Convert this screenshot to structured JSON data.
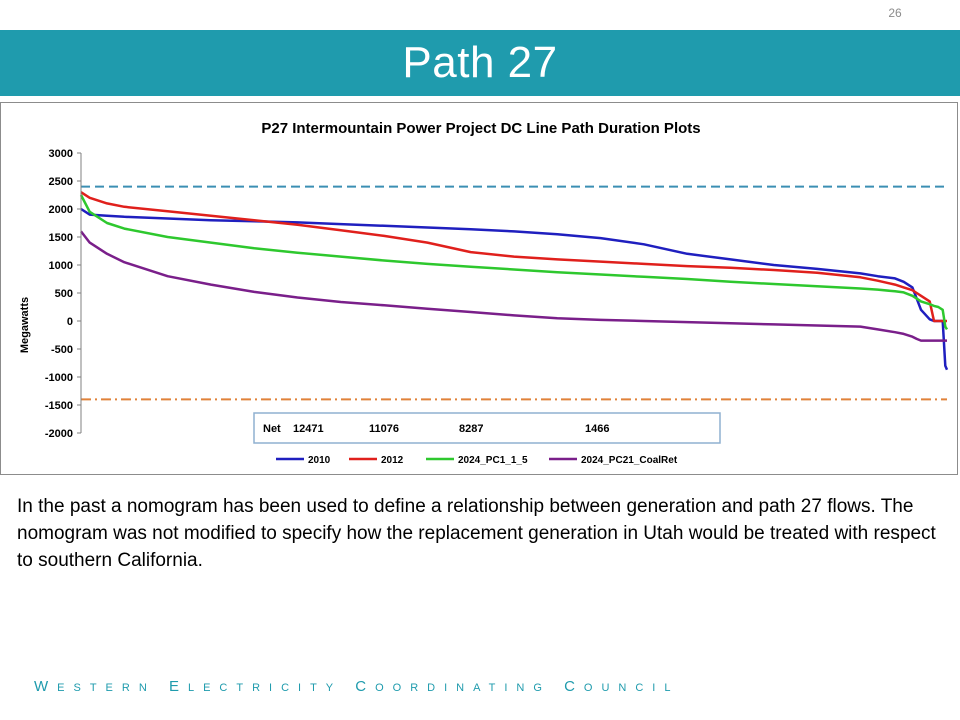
{
  "slide": {
    "page_number": "26",
    "title": "Path 27",
    "body_text": "In the past a nomogram has been used to define a relationship between generation and path 27 flows.  The nomogram was not modified to specify how the replacement generation in Utah would be treated with respect to southern California.",
    "footer": "Western Electricity Coordinating Council"
  },
  "colors": {
    "title_band": "#1f9bad",
    "footer_text": "#1f9bad",
    "series_2010": "#1f1fbf",
    "series_2012": "#e0201c",
    "series_2024_pc1": "#2ec82e",
    "series_2024_pc21": "#7a1f8a",
    "upper_limit": "#3b8fb3",
    "lower_limit": "#e0823a"
  },
  "chart_data": {
    "type": "line",
    "title": "P27 Intermountain Power Project DC Line Path Duration Plots",
    "ylabel": "Megawatts",
    "xlabel": "",
    "ylim": [
      -2000,
      3000
    ],
    "yticks": [
      "3000",
      "2500",
      "2000",
      "1500",
      "1000",
      "500",
      "0",
      "-500",
      "-1000",
      "-1500",
      "-2000"
    ],
    "x": [
      0,
      1,
      3,
      5,
      10,
      15,
      20,
      25,
      30,
      35,
      40,
      45,
      50,
      55,
      60,
      65,
      70,
      75,
      80,
      85,
      90,
      92,
      94,
      95,
      96,
      96.5,
      97,
      98,
      98.5,
      99,
      99.5,
      99.8,
      100
    ],
    "series": [
      {
        "name": "2010",
        "color": "#1f1fbf",
        "values": [
          2000,
          1900,
          1880,
          1860,
          1830,
          1800,
          1780,
          1760,
          1730,
          1700,
          1670,
          1640,
          1600,
          1550,
          1480,
          1370,
          1200,
          1100,
          1000,
          930,
          850,
          800,
          760,
          700,
          600,
          400,
          200,
          30,
          0,
          0,
          0,
          -800,
          -870
        ]
      },
      {
        "name": "2012",
        "color": "#e0201c",
        "values": [
          2300,
          2200,
          2100,
          2040,
          1960,
          1880,
          1800,
          1720,
          1620,
          1520,
          1400,
          1230,
          1150,
          1100,
          1060,
          1020,
          980,
          950,
          910,
          860,
          780,
          720,
          650,
          600,
          550,
          500,
          450,
          350,
          0,
          0,
          0,
          0,
          0
        ]
      },
      {
        "name": "2024_PC1_1_5",
        "color": "#2ec82e",
        "values": [
          2250,
          1950,
          1750,
          1650,
          1500,
          1400,
          1300,
          1220,
          1150,
          1080,
          1020,
          970,
          920,
          870,
          830,
          790,
          750,
          700,
          660,
          620,
          580,
          560,
          530,
          510,
          450,
          400,
          350,
          300,
          270,
          250,
          200,
          -100,
          -150
        ]
      },
      {
        "name": "2024_PC21_CoalRet",
        "color": "#7a1f8a",
        "values": [
          1600,
          1400,
          1200,
          1050,
          800,
          650,
          520,
          420,
          340,
          280,
          220,
          160,
          100,
          50,
          20,
          0,
          -20,
          -40,
          -60,
          -80,
          -100,
          -150,
          -200,
          -230,
          -280,
          -320,
          -350,
          -350,
          -350,
          -350,
          -350,
          -350,
          -350
        ]
      }
    ],
    "reference_lines": [
      {
        "value": 2400,
        "color": "#3b8fb3",
        "style": "dashed"
      },
      {
        "value": -1400,
        "color": "#e0823a",
        "style": "dash-dot"
      }
    ],
    "net_box": {
      "label": "Net",
      "values": [
        "12471",
        "11076",
        "8287",
        "1466"
      ]
    },
    "legend": [
      "2010",
      "2012",
      "2024_PC1_1_5",
      "2024_PC21_CoalRet"
    ],
    "legend_position": "bottom",
    "grid": false
  }
}
